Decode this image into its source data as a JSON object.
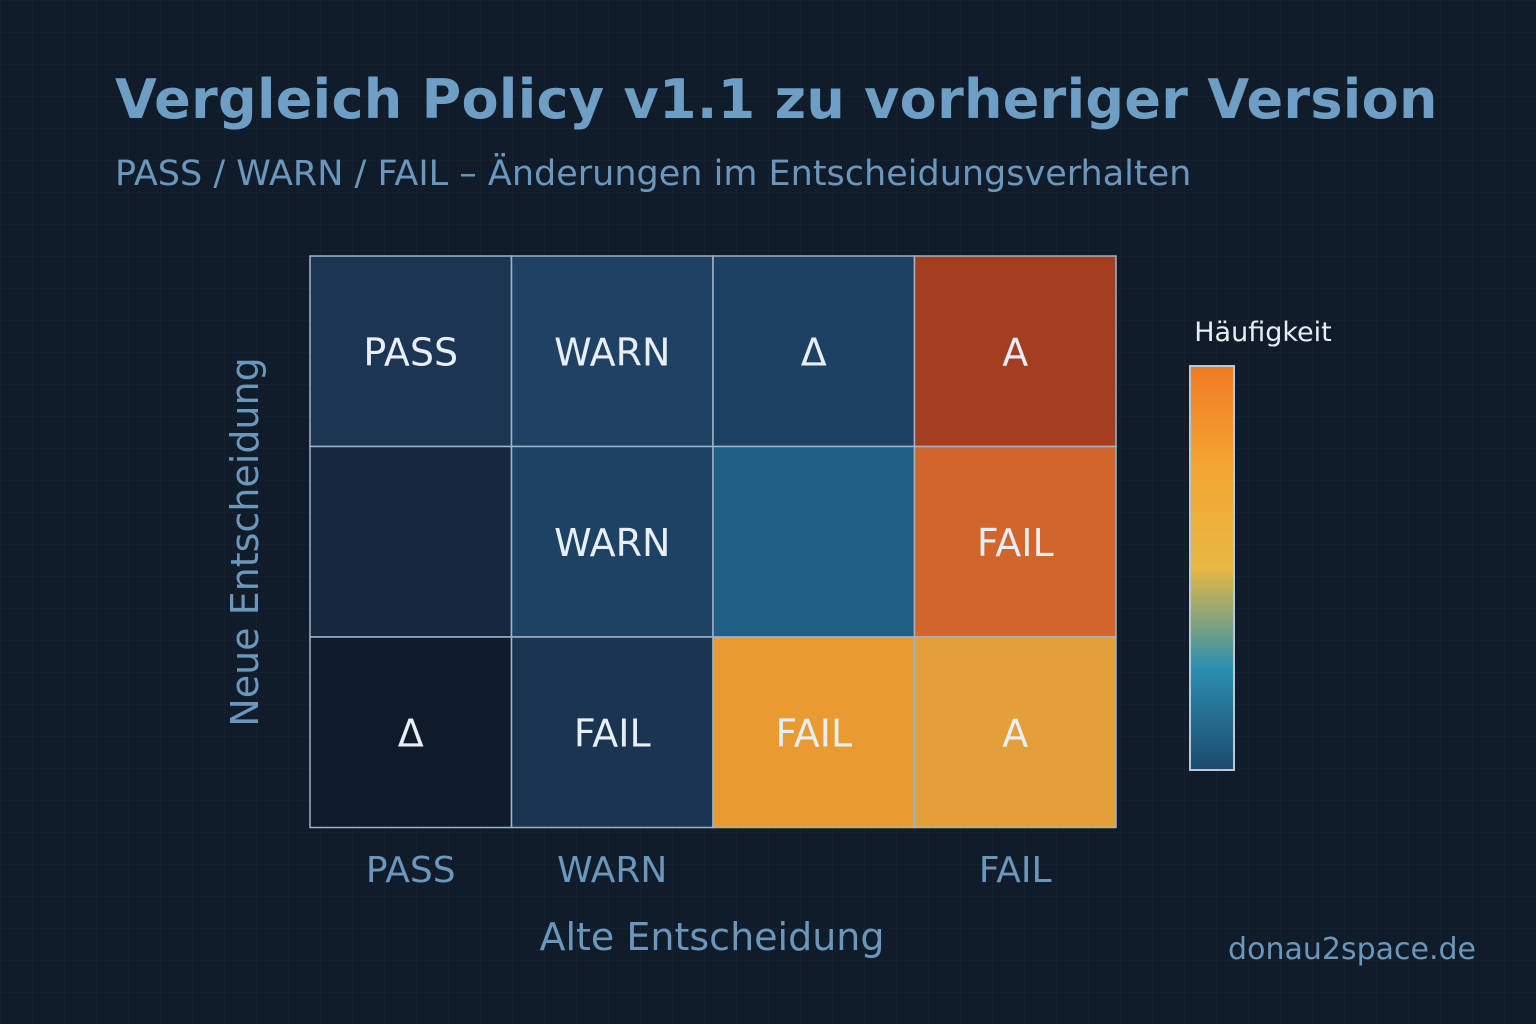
{
  "header": {
    "title": "Vergleich Policy v1.1 zu vorheriger Version",
    "subtitle": "PASS / WARN / FAIL – Änderungen im Entscheidungsverhalten"
  },
  "footer": {
    "site": "donau2space.de"
  },
  "chart_data": {
    "type": "heatmap",
    "xlabel": "Alte Entscheidung",
    "ylabel": "Neue Entscheidung",
    "x_tick_labels": [
      "PASS",
      "WARN",
      "",
      "FAIL"
    ],
    "rows": [
      {
        "cells": [
          {
            "label": "PASS",
            "color": "#1c3552"
          },
          {
            "label": "WARN",
            "color": "#1f4264"
          },
          {
            "label": "Δ",
            "color": "#1d4163"
          },
          {
            "label": "A",
            "color": "#a53e21"
          }
        ]
      },
      {
        "cells": [
          {
            "label": "",
            "color": "#15283f"
          },
          {
            "label": "WARN",
            "color": "#1e4264"
          },
          {
            "label": "",
            "color": "#1f5e85"
          },
          {
            "label": "FAIL",
            "color": "#d2662a"
          }
        ]
      },
      {
        "cells": [
          {
            "label": "Δ",
            "color": "#0f1b2b"
          },
          {
            "label": "FAIL",
            "color": "#1a3451"
          },
          {
            "label": "FAIL",
            "color": "#e99a30"
          },
          {
            "label": "A",
            "color": "#e4a038"
          }
        ]
      }
    ],
    "legend": {
      "title": "Häufigkeit",
      "gradient_colors": [
        "#f17a24",
        "#f3a532",
        "#e7b843",
        "#2a8fb0",
        "#1d4a6e"
      ]
    }
  }
}
